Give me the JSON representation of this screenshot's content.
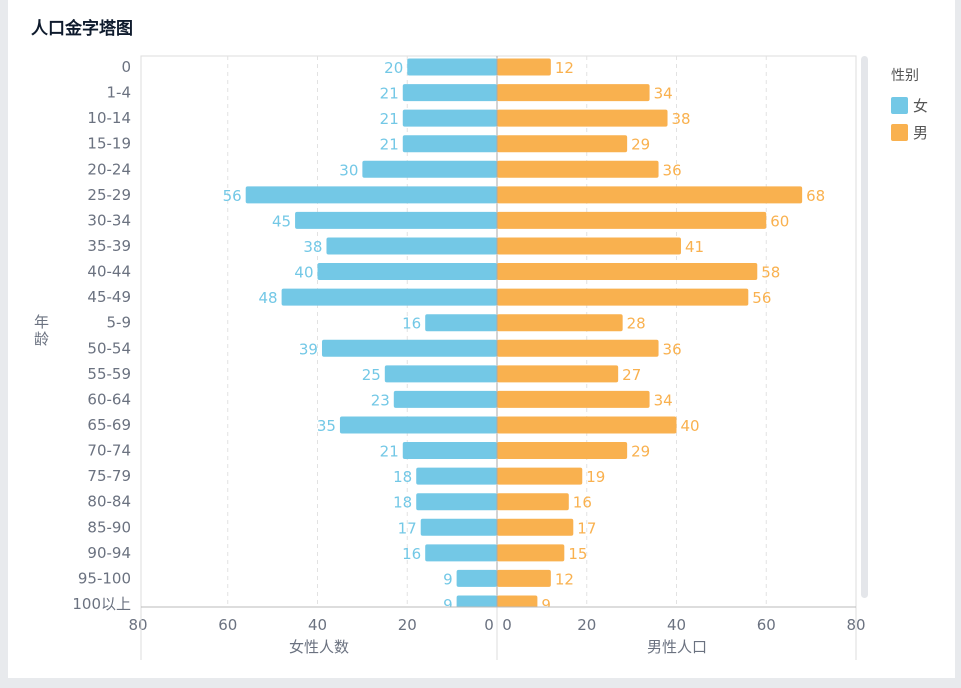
{
  "title": "人口金字塔图",
  "chart_data": {
    "type": "bar",
    "orientation": "horizontal-pyramid",
    "title": "人口金字塔图",
    "ylabel": "年龄",
    "xlabel_left": "女性人数",
    "xlabel_right": "男性人口",
    "xlim": [
      0,
      80
    ],
    "xticks": [
      0,
      20,
      40,
      60,
      80
    ],
    "grid": true,
    "legend": {
      "title": "性别",
      "placement": "right",
      "entries": [
        "女",
        "男"
      ]
    },
    "colors": {
      "女": "#73c8e6",
      "男": "#f9b14f"
    },
    "categories": [
      "0",
      "1-4",
      "10-14",
      "15-19",
      "20-24",
      "25-29",
      "30-34",
      "35-39",
      "40-44",
      "45-49",
      "5-9",
      "50-54",
      "55-59",
      "60-64",
      "65-69",
      "70-74",
      "75-79",
      "80-84",
      "85-90",
      "90-94",
      "95-100",
      "100以上"
    ],
    "series": [
      {
        "name": "女",
        "values": [
          20,
          21,
          21,
          21,
          30,
          56,
          45,
          38,
          40,
          48,
          16,
          39,
          25,
          23,
          35,
          21,
          18,
          18,
          17,
          16,
          9,
          9
        ]
      },
      {
        "name": "男",
        "values": [
          12,
          34,
          38,
          29,
          36,
          68,
          60,
          41,
          58,
          56,
          28,
          36,
          27,
          34,
          40,
          29,
          19,
          16,
          17,
          15,
          12,
          9
        ]
      }
    ]
  }
}
